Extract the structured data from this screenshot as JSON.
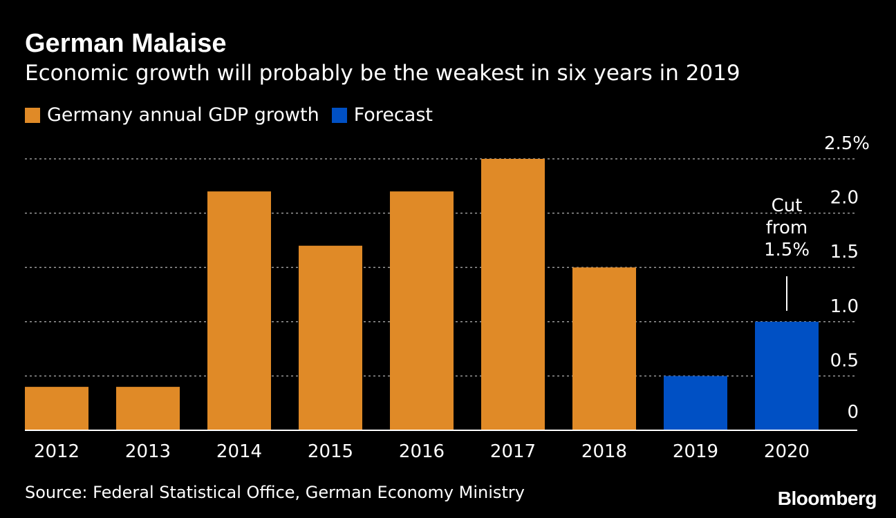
{
  "title": "German Malaise",
  "subtitle": "Economic growth will probably be the weakest in six years in 2019",
  "legend": [
    {
      "label": "Germany annual GDP growth",
      "color": "#e08a27"
    },
    {
      "label": "Forecast",
      "color": "#0050c4"
    }
  ],
  "colors": {
    "background": "#000000",
    "actual": "#e08a27",
    "forecast": "#0050c4",
    "grid": "#9a9a9a",
    "text": "#ffffff"
  },
  "annotation": {
    "lines": [
      "Cut",
      "from",
      "1.5%"
    ],
    "category": "2020"
  },
  "source": "Source: Federal Statistical Office, German Economy Ministry",
  "logo": "Bloomberg",
  "chart_data": {
    "type": "bar",
    "categories": [
      "2012",
      "2013",
      "2014",
      "2015",
      "2016",
      "2017",
      "2018",
      "2019",
      "2020"
    ],
    "series": [
      {
        "name": "Germany annual GDP growth",
        "values": [
          0.4,
          0.4,
          2.2,
          1.7,
          2.2,
          2.5,
          1.5,
          null,
          null
        ]
      },
      {
        "name": "Forecast",
        "values": [
          null,
          null,
          null,
          null,
          null,
          null,
          null,
          0.5,
          1.0
        ]
      }
    ],
    "ylim": [
      0,
      2.5
    ],
    "yticks": [
      0,
      0.5,
      1.0,
      1.5,
      2.0,
      2.5
    ],
    "ytick_labels": [
      "0",
      "0.5",
      "1.0",
      "1.5",
      "2.0",
      "2.5%"
    ],
    "grid": true,
    "legend_position": "top-left",
    "xlabel": "",
    "ylabel": ""
  }
}
